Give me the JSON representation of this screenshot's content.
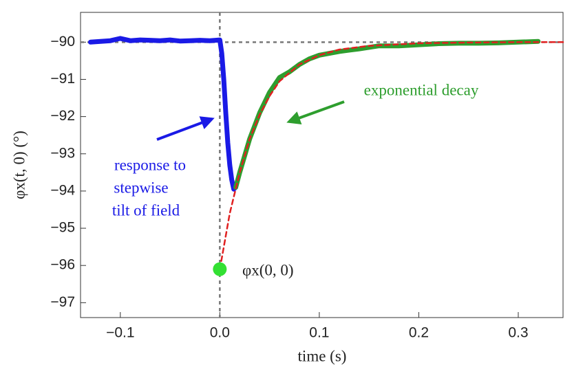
{
  "chart_data": {
    "type": "line",
    "xlabel": "time (s)",
    "ylabel": "φx(t, 0) (°)",
    "xlim": [
      -0.14,
      0.345
    ],
    "ylim": [
      -97.4,
      -89.2
    ],
    "xticks": [
      {
        "value": -0.1,
        "label": "−0.1"
      },
      {
        "value": 0,
        "label": "0.0"
      },
      {
        "value": 0.1,
        "label": "0.1"
      },
      {
        "value": 0.2,
        "label": "0.2"
      },
      {
        "value": 0.3,
        "label": "0.3"
      }
    ],
    "yticks": [
      {
        "value": -97,
        "label": "−97"
      },
      {
        "value": -96,
        "label": "−96"
      },
      {
        "value": -95,
        "label": "−95"
      },
      {
        "value": -94,
        "label": "−94"
      },
      {
        "value": -93,
        "label": "−93"
      },
      {
        "value": -92,
        "label": "−92"
      },
      {
        "value": -91,
        "label": "−91"
      },
      {
        "value": -90,
        "label": "−90"
      }
    ],
    "reference_lines": {
      "y": [
        -90
      ],
      "x": [
        0
      ]
    },
    "series": [
      {
        "color": "#1a1ae6",
        "x": [
          -0.13,
          -0.12,
          -0.11,
          -0.1,
          -0.09,
          -0.08,
          -0.07,
          -0.06,
          -0.05,
          -0.04,
          -0.03,
          -0.02,
          -0.01,
          0,
          0.002,
          0.004,
          0.006,
          0.008,
          0.01,
          0.012,
          0.014,
          0.016
        ],
        "values": [
          -90.0,
          -89.98,
          -89.96,
          -89.9,
          -89.96,
          -89.94,
          -89.95,
          -89.96,
          -89.94,
          -89.97,
          -89.96,
          -89.95,
          -89.96,
          -89.94,
          -90.3,
          -91.0,
          -91.9,
          -92.7,
          -93.3,
          -93.7,
          -93.95,
          -93.9
        ]
      },
      {
        "color": "#2e9e2e",
        "x": [
          0.016,
          0.02,
          0.03,
          0.04,
          0.05,
          0.06,
          0.07,
          0.08,
          0.09,
          0.1,
          0.12,
          0.14,
          0.16,
          0.18,
          0.2,
          0.22,
          0.24,
          0.26,
          0.28,
          0.3,
          0.32
        ],
        "values": [
          -93.9,
          -93.5,
          -92.6,
          -91.9,
          -91.35,
          -90.95,
          -90.8,
          -90.6,
          -90.45,
          -90.35,
          -90.25,
          -90.18,
          -90.1,
          -90.1,
          -90.07,
          -90.04,
          -90.03,
          -90.03,
          -90.02,
          -90.0,
          -89.98
        ]
      },
      {
        "color": "#e02020",
        "dashed": true,
        "x": [
          0,
          0.01,
          0.02,
          0.03,
          0.04,
          0.05,
          0.06,
          0.08,
          0.1,
          0.12,
          0.15,
          0.2,
          0.25,
          0.3,
          0.345
        ],
        "values": [
          -96.1,
          -94.6,
          -93.5,
          -92.6,
          -91.95,
          -91.45,
          -91.05,
          -90.6,
          -90.35,
          -90.2,
          -90.1,
          -90.03,
          -90.01,
          -90.0,
          -90.0
        ]
      }
    ],
    "points": [
      {
        "x": 0,
        "y": -96.1,
        "color": "#33e033"
      }
    ],
    "annotations": [
      "exponential decay",
      "response to",
      "stepwise",
      "tilt of field",
      "φx(0, 0)"
    ]
  }
}
